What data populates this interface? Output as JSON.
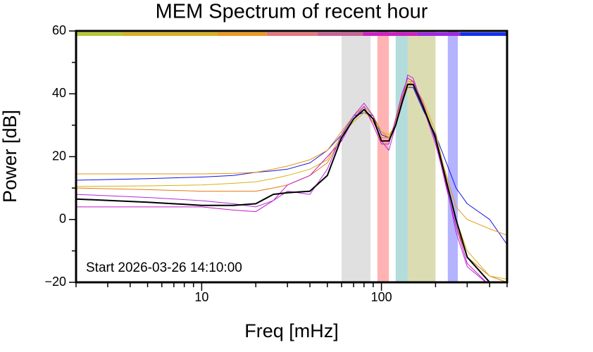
{
  "chart_data": {
    "type": "line",
    "title": "MEM Spectrum of recent hour",
    "x_label": "Freq [mHz]",
    "y_label": "Power [dB]",
    "annotation": "Start 2026-03-26 14:10:00",
    "x_log": true,
    "xlim": [
      2,
      500
    ],
    "ylim": [
      -20,
      60
    ],
    "xticks": [
      10,
      100
    ],
    "x_minor_ticks": [
      2,
      3,
      4,
      5,
      6,
      7,
      8,
      9,
      20,
      30,
      40,
      50,
      60,
      70,
      80,
      90,
      200,
      300,
      400,
      500
    ],
    "yticks": [
      60,
      40,
      20,
      0,
      {
        "value": -20,
        "label": "−20"
      }
    ],
    "y_minor_ticks": [
      50,
      30,
      10,
      -10
    ],
    "bands": [
      {
        "from": 60,
        "to": 87,
        "color": "#e0e0e0"
      },
      {
        "from": 95,
        "to": 110,
        "color": "#ffb3b3"
      },
      {
        "from": 120,
        "to": 140,
        "color": "#b3dcdc"
      },
      {
        "from": 140,
        "to": 200,
        "color": "#dcdcb3"
      },
      {
        "from": 234,
        "to": 266,
        "color": "#b3b3ff"
      }
    ],
    "top_bar": [
      {
        "from": 2,
        "to": 3.6,
        "color": "#b5c832"
      },
      {
        "from": 3.6,
        "to": 12.2,
        "color": "#d9b21e"
      },
      {
        "from": 12.2,
        "to": 23,
        "color": "#ee9a1e"
      },
      {
        "from": 23,
        "to": 44,
        "color": "#e8787a"
      },
      {
        "from": 44,
        "to": 79,
        "color": "#c86496"
      },
      {
        "from": 79,
        "to": 158,
        "color": "#d21ec8"
      },
      {
        "from": 158,
        "to": 274,
        "color": "#a028e6"
      },
      {
        "from": 274,
        "to": 500,
        "color": "#1432f0"
      }
    ],
    "x": [
      2,
      5,
      10,
      15,
      20,
      25,
      30,
      40,
      50,
      60,
      70,
      80,
      90,
      100,
      110,
      120,
      130,
      140,
      150,
      170,
      200,
      230,
      260,
      300,
      400,
      500
    ],
    "series": [
      {
        "color": "#1414e6",
        "width": 1,
        "values": [
          12.5,
          13,
          13.5,
          14,
          15,
          15.5,
          16,
          18,
          22,
          27,
          33,
          34,
          33,
          27,
          26,
          30,
          38,
          42,
          42,
          35,
          27,
          18,
          10,
          5,
          0,
          -8
        ]
      },
      {
        "color": "#e69614",
        "width": 1,
        "values": [
          14.5,
          14.5,
          14.5,
          14.7,
          15,
          16,
          17,
          19,
          22,
          28,
          33,
          36,
          33,
          28,
          26,
          30,
          38,
          44,
          44,
          36,
          26,
          14,
          4,
          0,
          -3,
          -5
        ]
      },
      {
        "color": "#e67814",
        "width": 1,
        "values": [
          10,
          9.5,
          9,
          9,
          9,
          10,
          11,
          14,
          18,
          26,
          32,
          35,
          31,
          26,
          26,
          31,
          39,
          43,
          44,
          37,
          26,
          10,
          -2,
          -12,
          -18,
          -20
        ]
      },
      {
        "color": "#d2b414",
        "width": 1,
        "values": [
          10.5,
          10.7,
          11,
          11.5,
          12,
          13,
          14,
          16,
          19,
          27,
          31,
          34,
          32,
          28,
          27,
          30,
          37,
          42,
          43,
          38,
          28,
          13,
          0,
          -10,
          -18,
          -19
        ]
      },
      {
        "color": "#c814c8",
        "width": 1,
        "values": [
          4,
          4,
          4,
          3,
          2.5,
          6,
          11,
          14,
          20,
          25,
          32,
          36,
          30,
          24,
          24,
          32,
          40,
          45,
          44,
          37,
          25,
          10,
          -2,
          -14,
          -21,
          -20
        ]
      },
      {
        "color": "#b428dc",
        "width": 1,
        "values": [
          8,
          7,
          6,
          5,
          4,
          6,
          9,
          8,
          16,
          27,
          33,
          37,
          33,
          25,
          22,
          30,
          38,
          46,
          45,
          36,
          24,
          11,
          -4,
          -15,
          -21,
          -21
        ]
      },
      {
        "color": "#000000",
        "width": 2,
        "values": [
          6.5,
          5.5,
          4.5,
          4.5,
          5,
          8,
          8.5,
          9,
          14,
          26,
          32,
          35,
          32,
          25,
          25,
          30,
          37,
          43,
          43,
          36,
          26,
          12,
          0,
          -12,
          -20,
          -21
        ]
      }
    ]
  }
}
